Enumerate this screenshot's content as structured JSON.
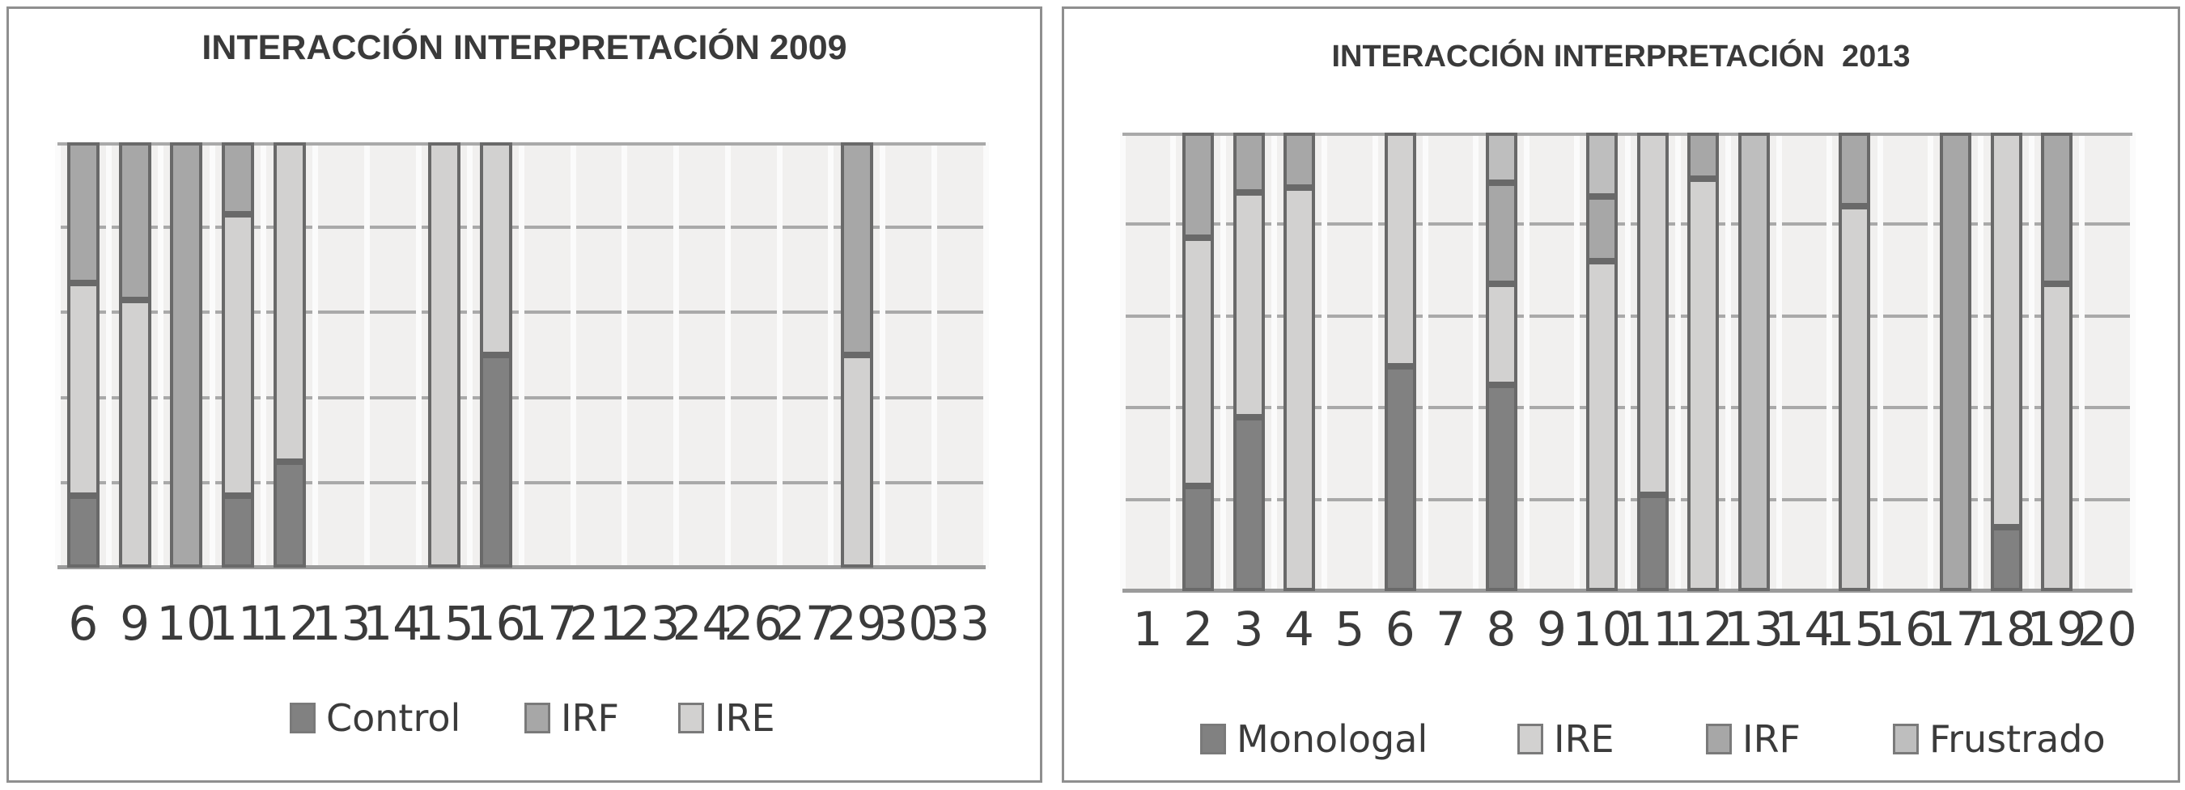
{
  "figure": {
    "background": "#ffffff",
    "description_colors": {
      "panel_border": "#8f8f8f",
      "plot_background": "#f1f0ef",
      "horizontal_gridline": "#a9a9a9",
      "vertical_gridline": "#fbfbfb",
      "axis_line": "#9b9b9b",
      "bar_border": "#696969",
      "text": "#3a3a3a"
    },
    "series_colors": {
      "dark": "#818181",
      "medium": "#a7a7a7",
      "light": "#d2d1d0",
      "medium_light": "#bebebe"
    }
  },
  "chart_data": [
    {
      "type": "bar",
      "subtype": "stacked-100",
      "title": "INTERACCIÓN INTERPRETACIÓN 2009",
      "categories": [
        "6",
        "9",
        "10",
        "11",
        "12",
        "13",
        "14",
        "15",
        "16",
        "17",
        "21",
        "23",
        "24",
        "26",
        "27",
        "29",
        "30",
        "33"
      ],
      "series": [
        {
          "name": "Control",
          "color_key": "dark",
          "values": [
            17,
            0,
            0,
            17,
            25,
            0,
            0,
            0,
            50,
            0,
            0,
            0,
            0,
            0,
            0,
            0,
            0,
            0
          ]
        },
        {
          "name": "IRE",
          "color_key": "light",
          "values": [
            50,
            63,
            0,
            66,
            75,
            0,
            0,
            100,
            50,
            0,
            0,
            0,
            0,
            0,
            0,
            50,
            0,
            0
          ]
        },
        {
          "name": "IRF",
          "color_key": "medium",
          "values": [
            33,
            37,
            100,
            17,
            0,
            0,
            0,
            0,
            0,
            0,
            0,
            0,
            0,
            0,
            0,
            50,
            0,
            0
          ]
        }
      ],
      "stack_order_note": "bottom to top: Control, IRE, IRF",
      "legend": [
        "Control",
        "IRF",
        "IRE"
      ],
      "xlabel": "",
      "ylabel": "",
      "ylim": [
        0,
        100
      ],
      "y_axis_labels_visible": false,
      "gridlines": "horizontal, 5 bands of 20%",
      "legend_position": "bottom"
    },
    {
      "type": "bar",
      "subtype": "stacked-100",
      "title": "INTERACCIÓN INTERPRETACIÓN  2013",
      "categories": [
        "1",
        "2",
        "3",
        "4",
        "5",
        "6",
        "7",
        "8",
        "9",
        "10",
        "11",
        "12",
        "13",
        "14",
        "15",
        "16",
        "17",
        "18",
        "19",
        "20"
      ],
      "series": [
        {
          "name": "Monologal",
          "color_key": "dark",
          "values": [
            0,
            23,
            38,
            0,
            0,
            49,
            0,
            45,
            0,
            0,
            21,
            0,
            0,
            0,
            0,
            0,
            0,
            14,
            0,
            0
          ]
        },
        {
          "name": "IRE",
          "color_key": "light",
          "values": [
            0,
            54,
            49,
            88,
            0,
            51,
            0,
            22,
            0,
            72,
            79,
            90,
            0,
            0,
            84,
            0,
            0,
            86,
            67,
            0
          ]
        },
        {
          "name": "IRF",
          "color_key": "medium",
          "values": [
            0,
            23,
            13,
            12,
            0,
            0,
            0,
            22,
            0,
            14,
            0,
            10,
            0,
            0,
            16,
            0,
            100,
            0,
            33,
            0
          ]
        },
        {
          "name": "Frustrado",
          "color_key": "medium_light",
          "values": [
            0,
            0,
            0,
            0,
            0,
            0,
            0,
            11,
            0,
            14,
            0,
            0,
            100,
            0,
            0,
            0,
            0,
            0,
            0,
            0
          ]
        }
      ],
      "stack_order_note": "bottom to top: Monologal, IRE, IRF, Frustrado",
      "legend": [
        "Monologal",
        "IRE",
        "IRF",
        "Frustrado"
      ],
      "xlabel": "",
      "ylabel": "",
      "ylim": [
        0,
        100
      ],
      "y_axis_labels_visible": false,
      "gridlines": "horizontal, 5 bands of 20%",
      "legend_position": "bottom"
    }
  ]
}
